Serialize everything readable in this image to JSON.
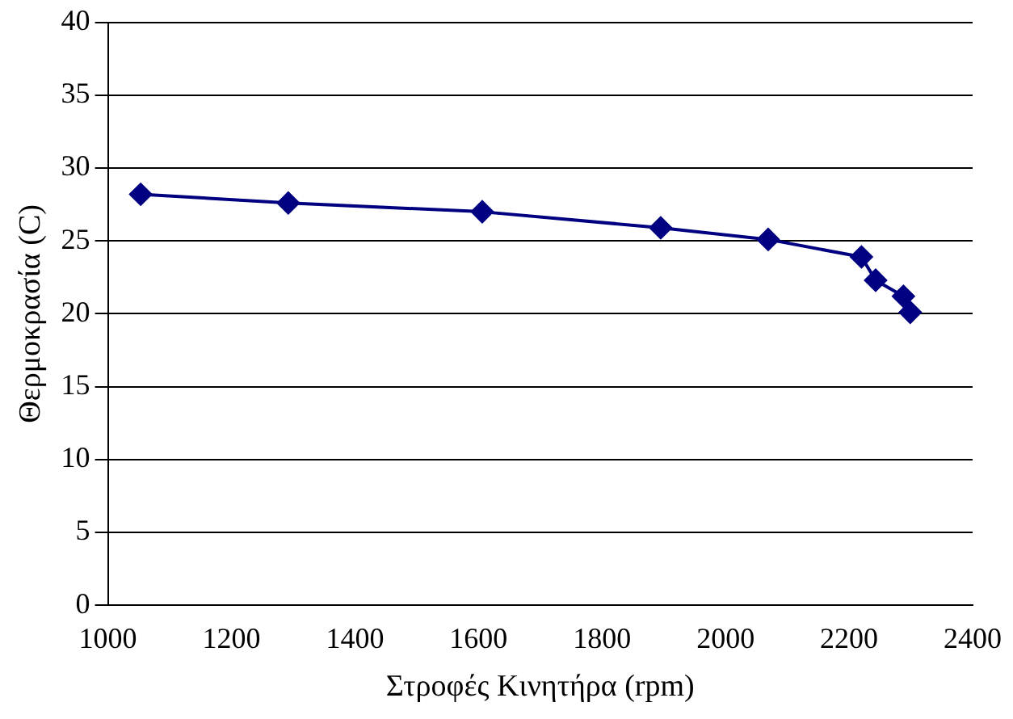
{
  "chart_data": {
    "type": "line",
    "xlabel": "Στροφές Κινητήρα (rpm)",
    "ylabel": "Θερμοκρασία (C)",
    "x": [
      1053,
      1292,
      1606,
      1895,
      2069,
      2220,
      2243,
      2288,
      2299
    ],
    "series": [
      {
        "color": "#000080",
        "values": [
          28.2,
          27.6,
          27.0,
          25.9,
          25.1,
          23.9,
          22.3,
          21.2,
          20.1
        ]
      }
    ],
    "xlim": [
      1000,
      2400
    ],
    "xticks": [
      1000,
      1200,
      1400,
      1600,
      1800,
      2000,
      2200,
      2400
    ],
    "ylim": [
      0,
      40
    ],
    "yticks": [
      0,
      5,
      10,
      15,
      20,
      25,
      30,
      35,
      40
    ],
    "grid": "y",
    "legend": false,
    "marker": "diamond",
    "line_style": "solid"
  }
}
